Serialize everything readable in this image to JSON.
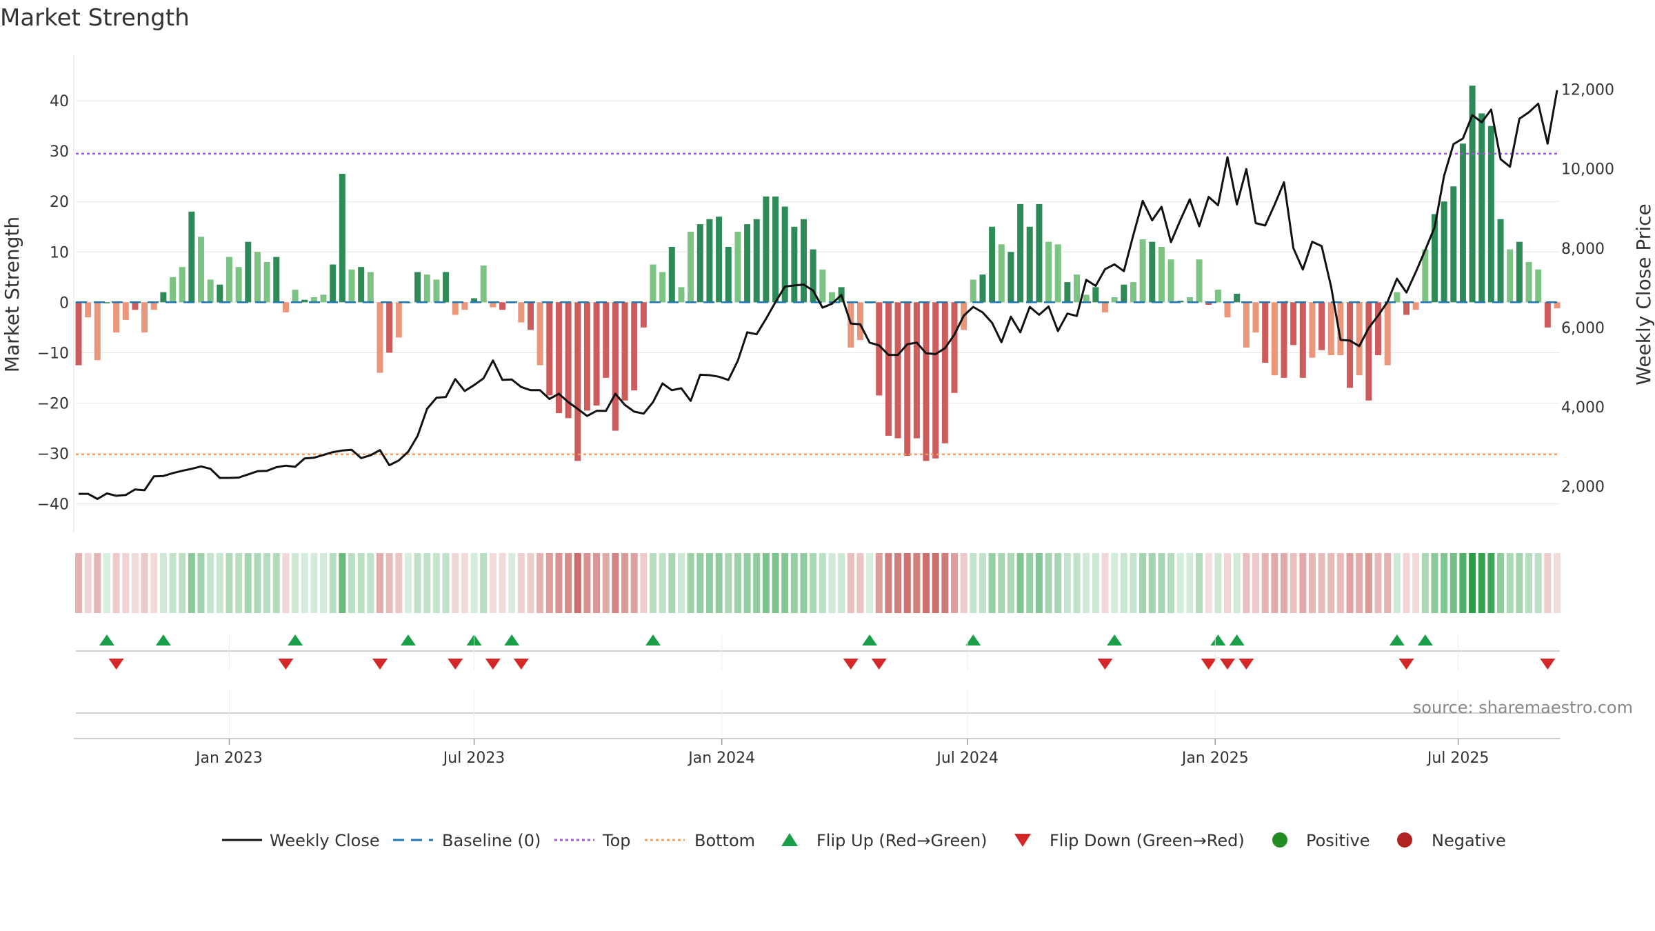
{
  "title": "Market Strength",
  "source": "source: sharemaestro.com",
  "chart_data": {
    "type": "bar",
    "title": "Market Strength",
    "ylabel": "Market Strength",
    "y2label": "Weekly Close Price",
    "ylim": [
      -45,
      47
    ],
    "y2lim": [
      925,
      12600
    ],
    "yticks": [
      -40,
      -30,
      -20,
      -10,
      0,
      10,
      20,
      30,
      40
    ],
    "y2ticks": [
      2000,
      4000,
      6000,
      8000,
      10000,
      12000
    ],
    "y2tick_labels": [
      "2,000",
      "4,000",
      "6,000",
      "8,000",
      "10,000",
      "12,000"
    ],
    "top_line": 29.5,
    "bottom_line": -30.2,
    "x_ticks": [
      {
        "label": "Jan 2023",
        "week": 16
      },
      {
        "label": "Jul 2023",
        "week": 42
      },
      {
        "label": "Jan 2024",
        "week": 68.3
      },
      {
        "label": "Jul 2024",
        "week": 94.4
      },
      {
        "label": "Jan 2025",
        "week": 120.7
      },
      {
        "label": "Jul 2025",
        "week": 146.5
      }
    ],
    "market_strength": [
      -12.5,
      -3,
      -11.5,
      0,
      -6,
      -3.5,
      -1.5,
      -6,
      -1.5,
      2,
      5,
      7,
      18,
      13,
      4.5,
      3.5,
      9,
      7,
      12,
      10,
      8,
      9,
      -2,
      2.5,
      0.5,
      1,
      1.5,
      7.5,
      25.5,
      6.5,
      7,
      6,
      -14,
      -10,
      -7,
      0,
      6,
      5.5,
      4.5,
      6,
      -2.5,
      -1.5,
      0.8,
      7.3,
      -1,
      -1.5,
      0,
      -4,
      -5.5,
      -12.5,
      -18.5,
      -22,
      -23,
      -31.5,
      -21.5,
      -20.5,
      -15,
      -25.5,
      -19.5,
      -17.5,
      -5,
      7.5,
      6,
      11,
      3,
      14,
      15.5,
      16.5,
      17,
      11,
      14,
      15.5,
      16.5,
      21,
      21,
      19,
      15,
      16.5,
      10.5,
      6.5,
      2,
      3,
      -9,
      -7.5,
      0,
      -18.5,
      -26.5,
      -27,
      -30.5,
      -27,
      -31.5,
      -31,
      -28,
      -18,
      -5.5,
      4.5,
      5.5,
      15,
      11.5,
      10,
      19.5,
      15,
      19.5,
      12,
      11.5,
      4,
      5.5,
      1.5,
      3,
      -2,
      1,
      3.5,
      4,
      12.5,
      12,
      11,
      8.5,
      0.3,
      1,
      8.5,
      -0.5,
      2.5,
      -3,
      1.7,
      -9,
      -6,
      -12,
      -14.5,
      -15,
      -8.5,
      -15,
      -11,
      -9.5,
      -10.5,
      -10.5,
      -17,
      -14.5,
      -19.5,
      -10.5,
      -12.5,
      2,
      -2.5,
      -1.5,
      10.5,
      17.5,
      20,
      23,
      31.5,
      43,
      37.5,
      35,
      16.5,
      10.5,
      12,
      8,
      6.5,
      -5,
      -1.2
    ],
    "weekly_close": [
      1810,
      1810,
      1680,
      1820,
      1760,
      1780,
      1920,
      1900,
      2250,
      2260,
      2330,
      2390,
      2440,
      2500,
      2440,
      2210,
      2210,
      2220,
      2300,
      2380,
      2390,
      2480,
      2520,
      2490,
      2700,
      2720,
      2790,
      2860,
      2900,
      2920,
      2710,
      2780,
      2910,
      2530,
      2650,
      2870,
      3270,
      3950,
      4230,
      4250,
      4700,
      4400,
      4550,
      4720,
      5170,
      4680,
      4690,
      4500,
      4420,
      4420,
      4200,
      4330,
      4120,
      3950,
      3770,
      3900,
      3900,
      4330,
      4050,
      3880,
      3830,
      4120,
      4590,
      4420,
      4470,
      4150,
      4810,
      4800,
      4760,
      4680,
      5160,
      5880,
      5830,
      6220,
      6640,
      7030,
      7060,
      7080,
      6930,
      6500,
      6600,
      6820,
      6100,
      6080,
      5620,
      5550,
      5310,
      5310,
      5580,
      5620,
      5350,
      5330,
      5480,
      5820,
      6300,
      6520,
      6380,
      6120,
      5630,
      6270,
      5880,
      6520,
      6320,
      6530,
      5910,
      6350,
      6290,
      7200,
      7050,
      7470,
      7590,
      7420,
      8330,
      9190,
      8700,
      9040,
      8150,
      8710,
      9230,
      8550,
      9290,
      9080,
      10290,
      9100,
      9990,
      8630,
      8570,
      9090,
      9660,
      8000,
      7460,
      8160,
      8050,
      7030,
      5690,
      5670,
      5530,
      5990,
      6300,
      6650,
      7230,
      6880,
      7400,
      7950,
      8530,
      9820,
      10620,
      10760,
      11350,
      11170,
      11490,
      10240,
      10050,
      11260,
      11420,
      11640,
      10630,
      11980
    ]
  },
  "legend": {
    "weekly_close": "Weekly Close",
    "baseline": "Baseline (0)",
    "top": "Top",
    "bottom": "Bottom",
    "flip_up": "Flip Up (Red→Green)",
    "flip_down": "Flip Down (Green→Red)",
    "positive": "Positive",
    "negative": "Negative"
  },
  "colors": {
    "pos_strong": "#2e8b57",
    "pos_light": "#7dc383",
    "neg_strong": "#cd5c5c",
    "neg_light": "#e9967a",
    "top_line": "#9b59d6",
    "bottom_line": "#f0a060",
    "baseline": "#1f77b4",
    "close": "#111111",
    "flip_up": "#1a9e4a",
    "flip_down": "#d62728",
    "positive_dot": "#228b22",
    "negative_dot": "#b22222",
    "grid": "#e6e6e6"
  }
}
